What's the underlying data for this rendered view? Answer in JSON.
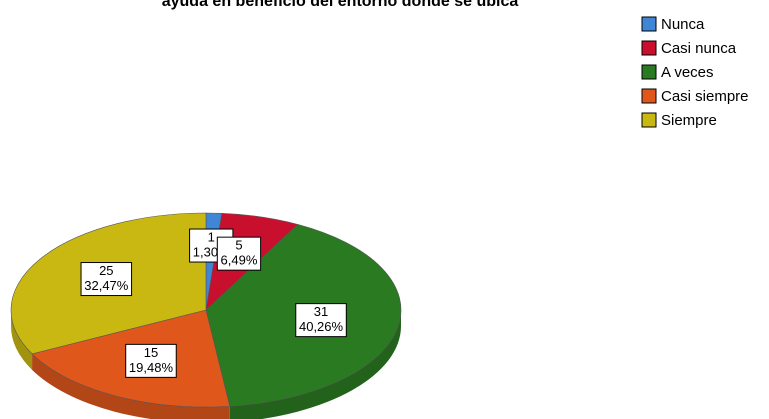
{
  "chart_data": {
    "type": "pie",
    "title": "ayuda en beneficio del entorno donde se ubica",
    "categories": [
      "Nunca",
      "Casi nunca",
      "A veces",
      "Casi siempre",
      "Siempre"
    ],
    "values": [
      1,
      5,
      31,
      15,
      25
    ],
    "percent_labels": [
      "1,30%",
      "6,49%",
      "40,26%",
      "19,48%",
      "32,47%"
    ],
    "colors": [
      "#3f86d6",
      "#c8102e",
      "#2a7a22",
      "#e0571c",
      "#c9b812"
    ],
    "legend": "top-right"
  }
}
